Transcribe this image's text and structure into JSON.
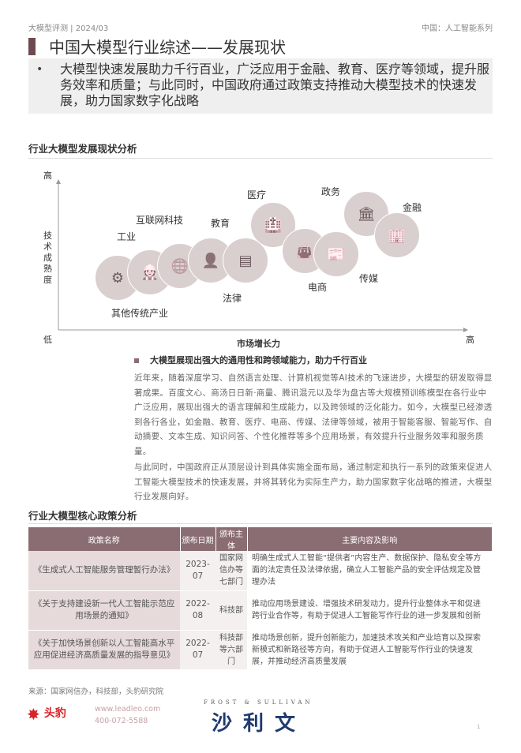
{
  "header": {
    "left": "大模型评测 | 2024/03",
    "right": "中国：人工智能系列"
  },
  "title": "中国大模型行业综述——发展现状",
  "summary": {
    "bullet": "•",
    "text": "大模型快速发展助力千行百业，广泛应用于金融、教育、医疗等领域，提升服务效率和质量；与此同时，中国政府通过政策支持推动大模型技术的快速发展，助力国家数字化战略"
  },
  "diagram": {
    "section_title": "行业大模型发展现状分析",
    "y_axis": {
      "label": "技术成熟度",
      "high": "高",
      "low": "低"
    },
    "x_axis": {
      "label": "市场增长力",
      "high": "高"
    },
    "industries": [
      {
        "label": "其他传统产业",
        "icon": "gears-icon",
        "glyph": "⚙"
      },
      {
        "label": "工业",
        "icon": "worker-icon",
        "glyph": "👷"
      },
      {
        "label": "互联网科技",
        "icon": "globe-icon",
        "glyph": "🌐"
      },
      {
        "label": "教育",
        "icon": "teacher-icon",
        "glyph": "👤"
      },
      {
        "label": "法律",
        "icon": "law-book-icon",
        "glyph": "▤"
      },
      {
        "label": "医疗",
        "icon": "hospital-icon",
        "glyph": "🏥"
      },
      {
        "label": "电商",
        "icon": "shopping-bag-icon",
        "glyph": "👜"
      },
      {
        "label": "传媒",
        "icon": "newspaper-icon",
        "glyph": "📰"
      },
      {
        "label": "政务",
        "icon": "government-building-icon",
        "glyph": "🏛"
      },
      {
        "label": "金融",
        "icon": "bank-building-icon",
        "glyph": "🏢"
      }
    ]
  },
  "subheading": "大模型展现出强大的通用性和跨领域能力，助力千行百业",
  "paragraphs": [
    "近年来，随着深度学习、自然语言处理、计算机视觉等AI技术的飞速进步，大模型的研发取得显著成果。百度文心、商汤日日新·商量、腾讯混元以及华为盘古等大规模预训练模型在各行业中广泛应用，展现出强大的语言理解和生成能力，以及跨领域的泛化能力。如今，大模型已经渗透到各行各业，如金融、教育、医疗、电商、传媒、法律等领域，被用于智能客服、智能写作、自动摘要、文本生成、知识问答、个性化推荐等多个应用场景，有效提升行业服务效率和服务质量。",
    "与此同时，中国政府正从顶层设计到具体实施全面布局，通过制定和执行一系列的政策来促进人工智能大模型技术的快速发展，并将其转化为实际生产力，助力国家数字化战略的推进，大模型行业发展向好。"
  ],
  "policy": {
    "section_title": "行业大模型核心政策分析",
    "columns": [
      "政策名称",
      "颁布日期",
      "颁布主体",
      "主要内容及影响"
    ],
    "rows": [
      {
        "name": "《生成式人工智能服务管理暂行办法》",
        "date": "2023-07",
        "org": "国家网信办等七部门",
        "content": "明确生成式人工智能“提供者”内容生产、数据保护、隐私安全等方面的法定责任及法律依据，确立人工智能产品的安全评估规定及管理办法"
      },
      {
        "name": "《关于支持建设新一代人工智能示范应用场景的通知》",
        "date": "2022-08",
        "org": "科技部",
        "content": "推动应用场景建设、增强技术研发动力，提升行业整体水平和促进跨行业合作等，有助于促进人工智能写作行业的进一步发展和创新"
      },
      {
        "name": "《关于加快场景创新以人工智能高水平应用促进经济高质量发展的指导意见》",
        "date": "2022-07",
        "org": "科技部等六部门",
        "content": "推动场景创新，提升创新能力，加速技术攻关和产业培育以及探索新模式和新路径等方向，有助于促进人工智能写作行业的快速发展，并推动经济高质量发展"
      }
    ]
  },
  "footer": {
    "source": "来源：国家网信办，科技部，头豹研究院",
    "leadleo_logo": "头豹 LeadLeo",
    "website": "www.leadleo.com",
    "phone": "400-072-5588",
    "frost_tagline": "FROST & SULLIVAN",
    "frost_logo": "沙利文",
    "page_number": "1"
  },
  "colors": {
    "accent": "#8a6d72",
    "title_bar": "#6e4a50",
    "bubble": "#d9cfcf",
    "frost_blue": "#1f3a6e",
    "leadleo_red": "#d7242a"
  }
}
